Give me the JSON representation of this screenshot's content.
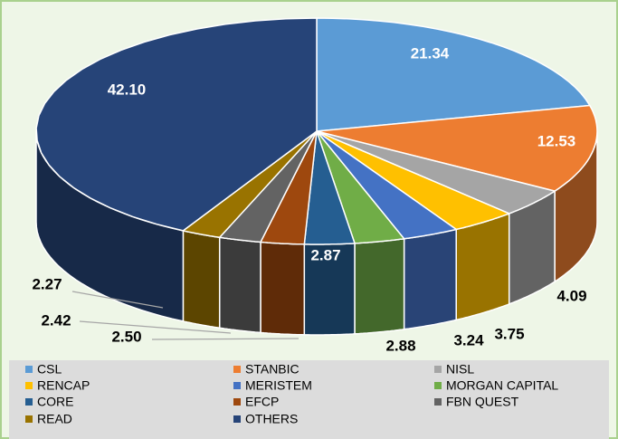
{
  "chart_data": {
    "type": "pie",
    "categories": [
      "CSL",
      "STANBIC",
      "NISL",
      "RENCAP",
      "MERISTEM",
      "MORGAN CAPITAL",
      "CORE",
      "EFCP",
      "FBN QUEST",
      "READ",
      "OTHERS"
    ],
    "values": [
      21.34,
      12.53,
      4.09,
      3.75,
      3.24,
      2.88,
      2.87,
      2.5,
      2.42,
      2.27,
      42.1
    ],
    "value_labels": [
      "21.34",
      "12.53",
      "4.09",
      "3.75",
      "3.24",
      "2.88",
      "2.87",
      "2.50",
      "2.42",
      "2.27",
      "42.10"
    ],
    "colors": [
      "#5b9bd5",
      "#ed7d31",
      "#a5a5a5",
      "#ffc000",
      "#4472c4",
      "#70ad47",
      "#255e91",
      "#9e480e",
      "#636363",
      "#997300",
      "#264478"
    ],
    "legend": "bottom"
  }
}
